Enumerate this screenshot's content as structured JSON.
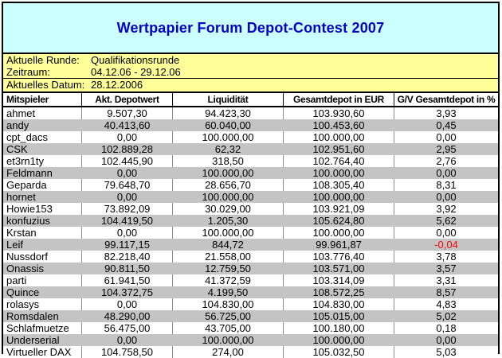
{
  "title": "Wertpapier Forum Depot-Contest 2007",
  "info": {
    "round_label": "Aktuelle Runde:",
    "round_value": "Qualifikationsrunde",
    "period_label": "Zeitraum:",
    "period_value": "04.12.06 - 29.12.06",
    "date_label": "Aktuelles Datum:",
    "date_value": "28.12.2006"
  },
  "table": {
    "columns": [
      "Mitspieler",
      "Akt. Depotwert",
      "Liquidität",
      "Gesamtdepot in EUR",
      "G/V Gesamtdepot in %"
    ],
    "rows": [
      {
        "player": "ahmet",
        "values": [
          "9.507,30",
          "94.423,30",
          "103.930,60",
          "3,93"
        ]
      },
      {
        "player": "andy",
        "values": [
          "40.413,60",
          "60.040,00",
          "100.453,60",
          "0,45"
        ]
      },
      {
        "player": "cpt_dacs",
        "values": [
          "0,00",
          "100.000,00",
          "100.000,00",
          "0,00"
        ]
      },
      {
        "player": "CSK",
        "values": [
          "102.889,28",
          "62,32",
          "102.951,60",
          "2,95"
        ]
      },
      {
        "player": "et3rn1ty",
        "values": [
          "102.445,90",
          "318,50",
          "102.764,40",
          "2,76"
        ]
      },
      {
        "player": "Feldmann",
        "values": [
          "0,00",
          "100.000,00",
          "100.000,00",
          "0,00"
        ]
      },
      {
        "player": "Geparda",
        "values": [
          "79.648,70",
          "28.656,70",
          "108.305,40",
          "8,31"
        ]
      },
      {
        "player": "hornet",
        "values": [
          "0,00",
          "100.000,00",
          "100.000,00",
          "0,00"
        ]
      },
      {
        "player": "Howie153",
        "values": [
          "73.892,09",
          "30.029,00",
          "103.921,09",
          "3,92"
        ]
      },
      {
        "player": "konfuzius",
        "values": [
          "104.419,50",
          "1.205,30",
          "105.624,80",
          "5,62"
        ]
      },
      {
        "player": "Krstan",
        "values": [
          "0,00",
          "100.000,00",
          "100.000,00",
          "0,00"
        ]
      },
      {
        "player": "Leif",
        "values": [
          "99.117,15",
          "844,72",
          "99.961,87",
          "-0,04"
        ]
      },
      {
        "player": "Nussdorf",
        "values": [
          "82.218,40",
          "21.558,00",
          "103.776,40",
          "3,78"
        ]
      },
      {
        "player": "Onassis",
        "values": [
          "90.811,50",
          "12.759,50",
          "103.571,00",
          "3,57"
        ]
      },
      {
        "player": "parti",
        "values": [
          "61.941,50",
          "41.372,59",
          "103.314,09",
          "3,31"
        ]
      },
      {
        "player": "Quince",
        "values": [
          "104.372,75",
          "4.199,50",
          "108.572,25",
          "8,57"
        ]
      },
      {
        "player": "rolasys",
        "values": [
          "0,00",
          "104.830,00",
          "104.830,00",
          "4,83"
        ]
      },
      {
        "player": "Romsdalen",
        "values": [
          "48.290,00",
          "56.725,00",
          "105.015,00",
          "5,02"
        ]
      },
      {
        "player": "Schlafmuetze",
        "values": [
          "56.475,00",
          "43.705,00",
          "100.180,00",
          "0,18"
        ]
      },
      {
        "player": "Underserial",
        "values": [
          "0,00",
          "100.000,00",
          "100.000,00",
          "0,00"
        ]
      },
      {
        "player": "Virtueller DAX",
        "values": [
          "104.758,50",
          "274,00",
          "105.032,50",
          "5,03"
        ]
      }
    ]
  },
  "colors": {
    "title_text": "#0000CC",
    "title_bg": "#CCFFFF",
    "info_bg": "#FFFF99",
    "header_bg": "#FFFFFF",
    "row_alt_bg": "#C4C4C4",
    "border": "#000000",
    "negative_value": "#FF0000"
  }
}
